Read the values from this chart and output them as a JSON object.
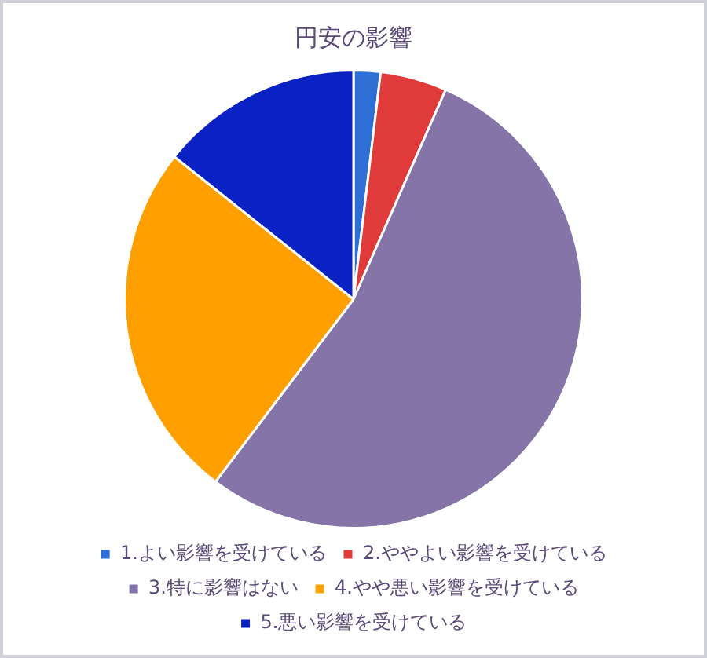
{
  "chart_data": {
    "type": "pie",
    "title": "円安の影響",
    "categories": [
      "1.よい影響を受けている",
      "2.ややよい影響を受けている",
      "3.特に影響はない",
      "4.やや悪い影響を受けている",
      "5.悪い影響を受けている"
    ],
    "values": [
      1.9,
      4.7,
      53.7,
      25.4,
      14.3
    ],
    "colors": [
      "#2e6fd6",
      "#e03a3a",
      "#8574a8",
      "#ffa000",
      "#0a22c4"
    ],
    "legend": "bottom"
  }
}
